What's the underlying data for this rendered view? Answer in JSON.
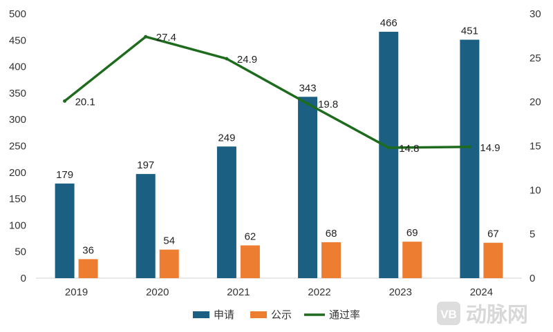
{
  "chart_data": {
    "type": "bar",
    "categories": [
      "2019",
      "2020",
      "2021",
      "2022",
      "2023",
      "2024"
    ],
    "series": [
      {
        "name": "申请",
        "kind": "bar",
        "axis": "left",
        "color": "#1b5f82",
        "values": [
          179,
          197,
          249,
          343,
          466,
          451
        ]
      },
      {
        "name": "公示",
        "kind": "bar",
        "axis": "left",
        "color": "#ed7d31",
        "values": [
          36,
          54,
          62,
          68,
          69,
          67
        ]
      },
      {
        "name": "通过率",
        "kind": "line",
        "axis": "right",
        "color": "#1e6b1e",
        "values": [
          20.1,
          27.4,
          24.9,
          19.8,
          14.8,
          14.9
        ]
      }
    ],
    "left_axis": {
      "min": 0,
      "max": 500,
      "step": 50,
      "ticks": [
        "0",
        "50",
        "100",
        "150",
        "200",
        "250",
        "300",
        "350",
        "400",
        "450",
        "500"
      ]
    },
    "right_axis": {
      "min": 0,
      "max": 30,
      "step": 5,
      "ticks": [
        "0",
        "5",
        "10",
        "15",
        "20",
        "25",
        "30"
      ]
    },
    "grid": false,
    "legend_position": "bottom"
  },
  "watermark": {
    "logo": "VB",
    "text": "动脉网"
  }
}
